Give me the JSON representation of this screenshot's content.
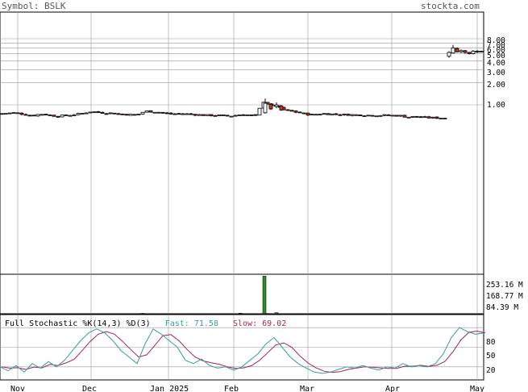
{
  "header": {
    "symbol_label": "Symbol: BSLK",
    "site": "stockta.com"
  },
  "stochastic": {
    "title": "Full Stochastic %K(14,3) %D(3)",
    "fast_label": "Fast: 71.58",
    "slow_label": "Slow: 69.02",
    "ticks": [
      "80",
      "50",
      "20"
    ]
  },
  "colors": {
    "up_candle": "#ffffff",
    "down_candle": "#c0392b",
    "volume_bar": "#2d8a2d",
    "fast_line": "#3a9c9c",
    "slow_line": "#a0245a",
    "grid": "#999999"
  },
  "chart_data": {
    "type": "candlestick",
    "scale": "log",
    "price_ticks": [
      "8.00",
      "7.00",
      "6.00",
      "5.00",
      "4.00",
      "3.00",
      "2.00",
      "1.00"
    ],
    "volume_ticks": [
      "253.16 M",
      "168.77 M",
      "84.39 M"
    ],
    "x_labels": [
      "Nov",
      "Dec",
      "Jan 2025",
      "Feb",
      "Mar",
      "Apr",
      "May"
    ],
    "approx_close_path": [
      {
        "period": "Nov",
        "close": 0.75
      },
      {
        "period": "Dec",
        "close": 0.78
      },
      {
        "period": "Jan 2025",
        "close": 0.73
      },
      {
        "period": "Feb",
        "close": 0.7
      },
      {
        "period": "Feb peak",
        "close": 1.1
      },
      {
        "period": "Mar",
        "close": 0.72
      },
      {
        "period": "Apr",
        "close": 0.66
      },
      {
        "period": "May",
        "close": 5.3
      }
    ]
  }
}
